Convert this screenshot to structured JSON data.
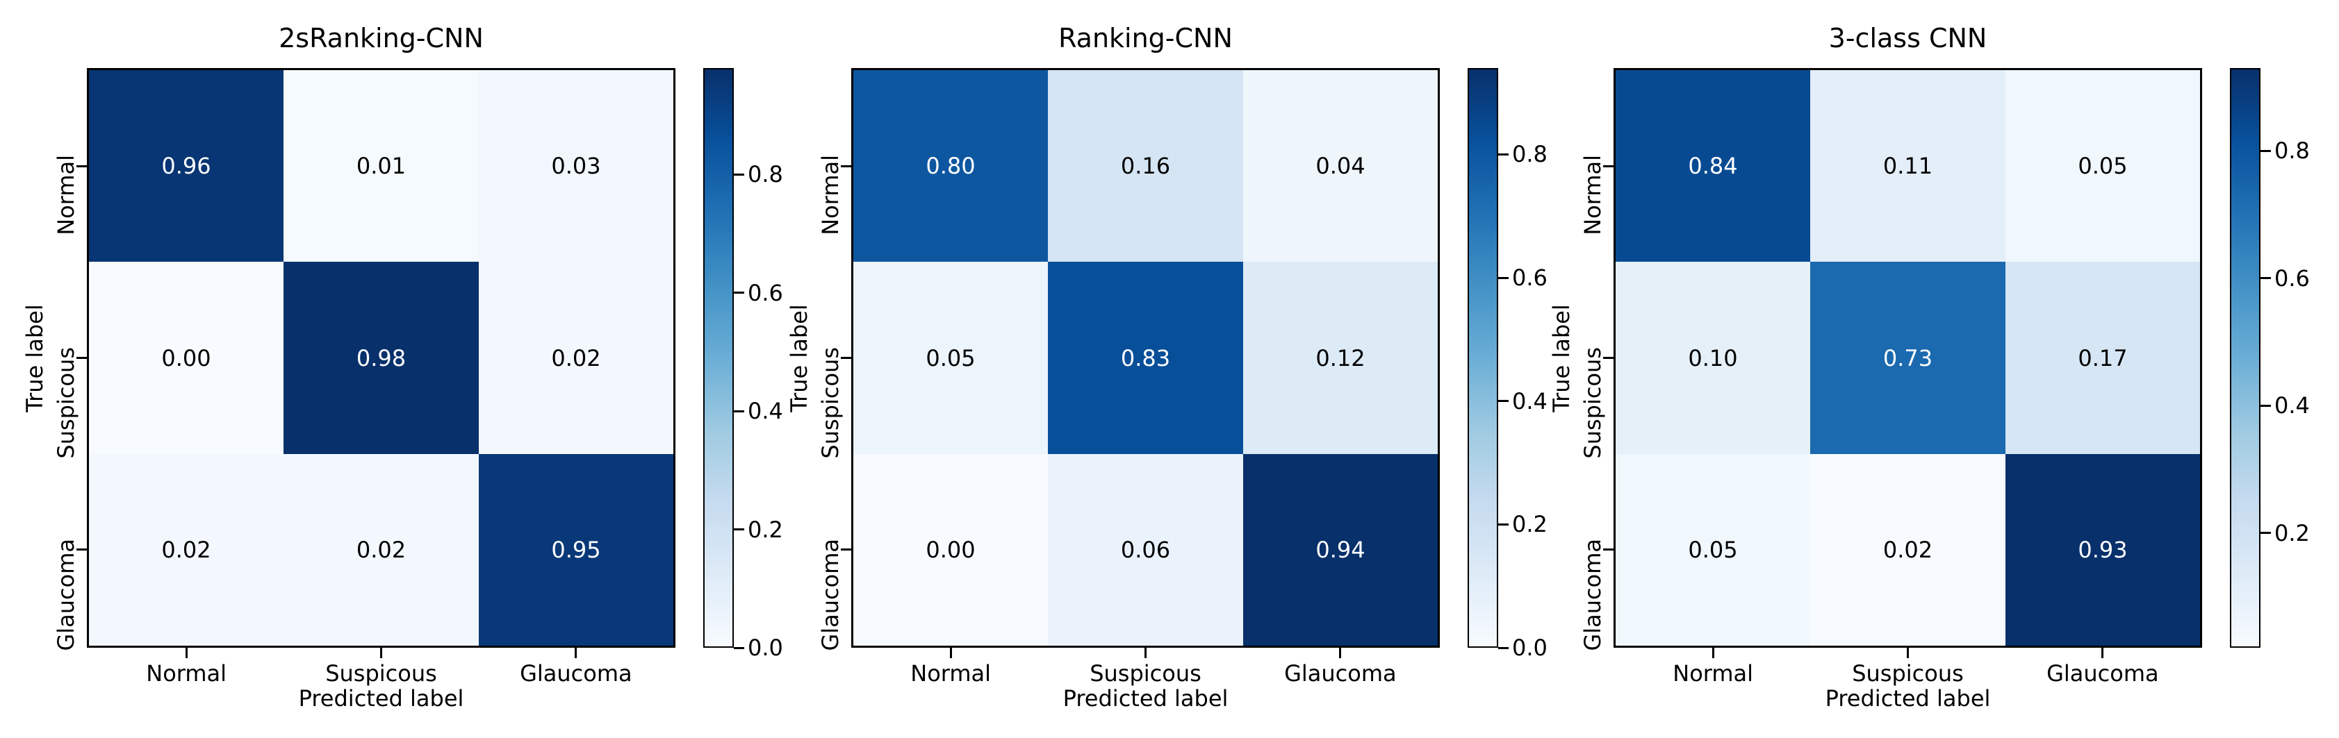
{
  "figure": {
    "background_color": "#ffffff",
    "text_color": "#000000",
    "axis_color": "#000000",
    "colormap_name": "Blues",
    "colormap_anchors": [
      "#f7fbff",
      "#deebf7",
      "#c6dbef",
      "#9ecae1",
      "#6baed6",
      "#4292c6",
      "#2171b5",
      "#08519c",
      "#08306b"
    ],
    "cell_text_light": "#ffffff",
    "cell_text_dark": "#000000"
  },
  "chart_data": [
    {
      "type": "heatmap",
      "title": "2sRanking-CNN",
      "xlabel": "Predicted label",
      "ylabel": "True label",
      "x_categories": [
        "Normal",
        "Suspicous",
        "Glaucoma"
      ],
      "y_categories": [
        "Normal",
        "Suspicous",
        "Glaucoma"
      ],
      "values": [
        [
          0.96,
          0.01,
          0.03
        ],
        [
          0.0,
          0.98,
          0.02
        ],
        [
          0.02,
          0.02,
          0.95
        ]
      ],
      "vmin": 0.0,
      "vmax": 0.98,
      "colorbar_ticks": [
        0.0,
        0.2,
        0.4,
        0.6,
        0.8
      ],
      "value_decimals": 2,
      "colorbar_tick_decimals": 1,
      "legend_position": "right-colorbar",
      "grid": false
    },
    {
      "type": "heatmap",
      "title": "Ranking-CNN",
      "xlabel": "Predicted label",
      "ylabel": "True label",
      "x_categories": [
        "Normal",
        "Suspicous",
        "Glaucoma"
      ],
      "y_categories": [
        "Normal",
        "Suspicous",
        "Glaucoma"
      ],
      "values": [
        [
          0.8,
          0.16,
          0.04
        ],
        [
          0.05,
          0.83,
          0.12
        ],
        [
          0.0,
          0.06,
          0.94
        ]
      ],
      "vmin": 0.0,
      "vmax": 0.94,
      "colorbar_ticks": [
        0.0,
        0.2,
        0.4,
        0.6,
        0.8
      ],
      "value_decimals": 2,
      "colorbar_tick_decimals": 1,
      "legend_position": "right-colorbar",
      "grid": false
    },
    {
      "type": "heatmap",
      "title": "3-class CNN",
      "xlabel": "Predicted label",
      "ylabel": "True label",
      "x_categories": [
        "Normal",
        "Suspicous",
        "Glaucoma"
      ],
      "y_categories": [
        "Normal",
        "Suspicous",
        "Glaucoma"
      ],
      "values": [
        [
          0.84,
          0.11,
          0.05
        ],
        [
          0.1,
          0.73,
          0.17
        ],
        [
          0.05,
          0.02,
          0.93
        ]
      ],
      "vmin": 0.02,
      "vmax": 0.93,
      "colorbar_ticks": [
        0.2,
        0.4,
        0.6,
        0.8
      ],
      "value_decimals": 2,
      "colorbar_tick_decimals": 1,
      "legend_position": "right-colorbar",
      "grid": false
    }
  ]
}
